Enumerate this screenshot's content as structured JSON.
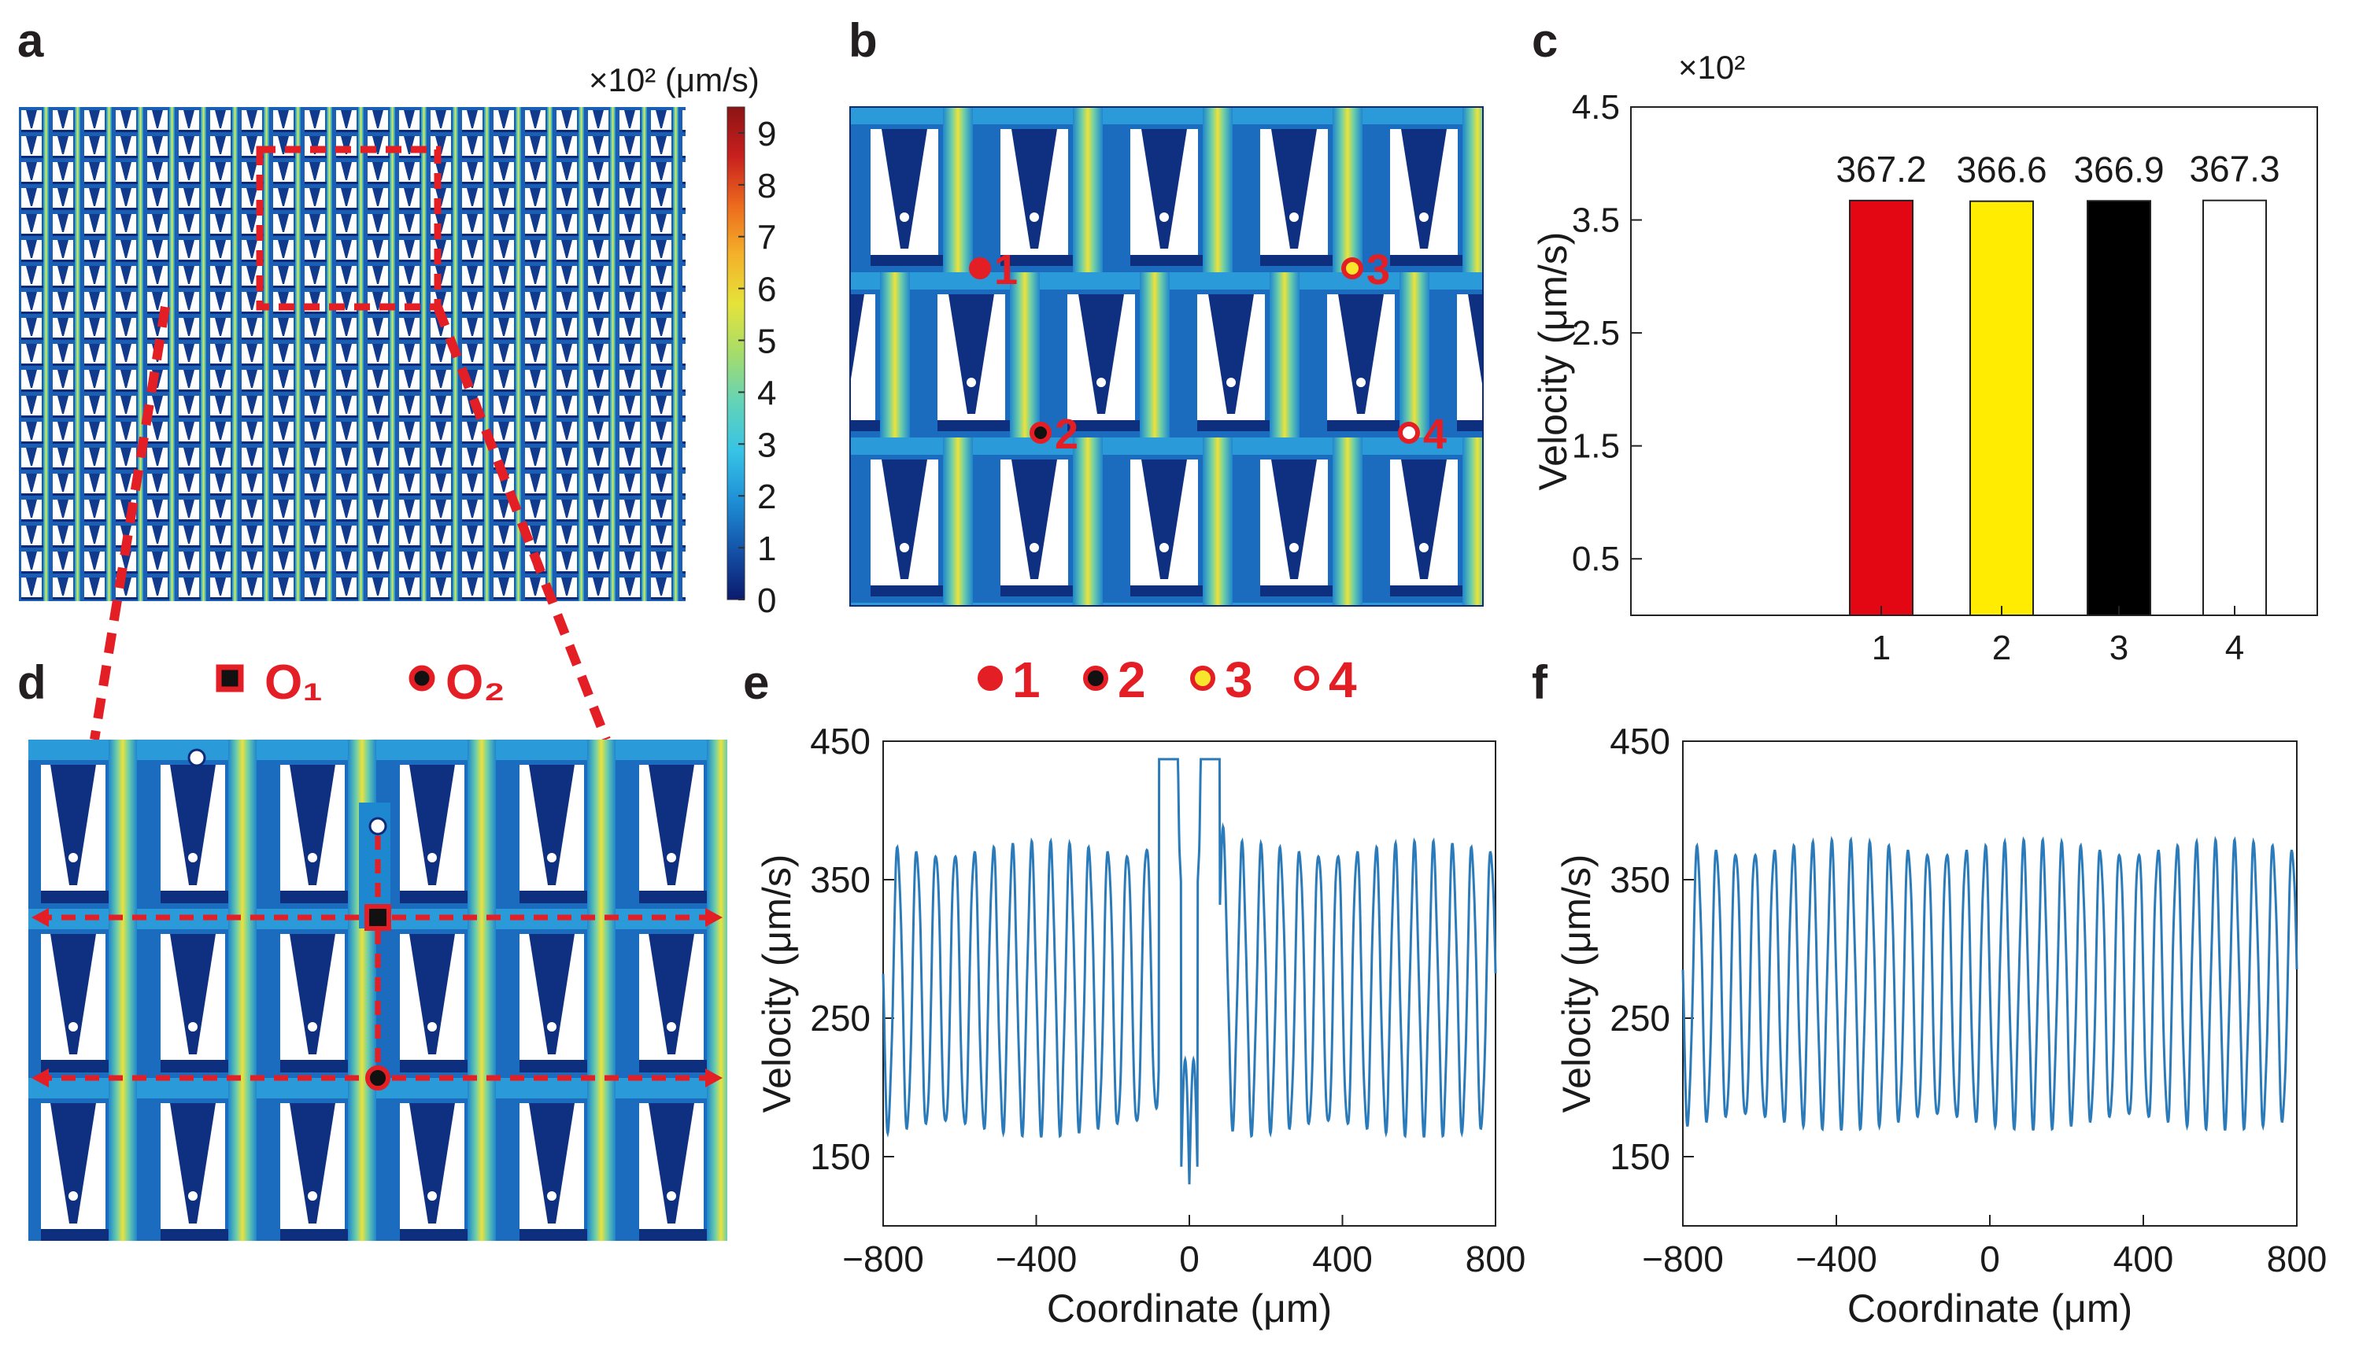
{
  "panels": {
    "a": "a",
    "b": "b",
    "c": "c",
    "d": "d",
    "e": "e",
    "f": "f"
  },
  "colorbar": {
    "unit": "×10² (μm/s)",
    "ticks": [
      "0",
      "1",
      "2",
      "3",
      "4",
      "5",
      "6",
      "7",
      "8",
      "9"
    ],
    "colors": [
      "#0b1a6e",
      "#1452a8",
      "#1e8fd6",
      "#36c3e6",
      "#63d3b8",
      "#a6dc6a",
      "#e5e33a",
      "#f4b12a",
      "#ec6a1d",
      "#c8201e",
      "#8c1414"
    ]
  },
  "field_colors": {
    "low": "#0c2a7a",
    "mid": "#1d87d0",
    "high_band": "#e7df3c",
    "band_edge": "#5fc9c9",
    "hole": "#ffffff",
    "accent": "#e41e25"
  },
  "panel_b_markers": [
    {
      "label": "1",
      "fill": "#e41e25",
      "stroke": "#e41e25"
    },
    {
      "label": "2",
      "fill": "#111111",
      "stroke": "#e41e25"
    },
    {
      "label": "3",
      "fill": "#f7e62b",
      "stroke": "#e41e25"
    },
    {
      "label": "4",
      "fill": "#ffffff",
      "stroke": "#e41e25"
    }
  ],
  "panel_d_legend": {
    "o1": "O₁",
    "o2": "O₂"
  },
  "points_legend": [
    "1",
    "2",
    "3",
    "4"
  ],
  "chart_data": [
    {
      "id": "c",
      "type": "bar",
      "categories": [
        "1",
        "2",
        "3",
        "4"
      ],
      "values": [
        367.2,
        366.6,
        366.9,
        367.3
      ],
      "value_labels": [
        "367.2",
        "366.6",
        "366.9",
        "367.3"
      ],
      "bar_colors": [
        "#e30613",
        "#ffec00",
        "#000000",
        "#ffffff"
      ],
      "multiplier": "×10²",
      "ylabel": "Velocity (μm/s)",
      "yticks": [
        "0.5",
        "1.5",
        "2.5",
        "3.5",
        "4.5"
      ],
      "ylim": [
        0,
        450
      ],
      "ytick_values": [
        50,
        150,
        250,
        350,
        450
      ]
    },
    {
      "id": "e",
      "type": "line",
      "xlabel": "Coordinate (μm)",
      "ylabel": "Velocity (μm/s)",
      "xlim": [
        -800,
        800
      ],
      "ylim": [
        100,
        450
      ],
      "xticks": [
        "−800",
        "−400",
        "0",
        "400",
        "800"
      ],
      "xtick_values": [
        -800,
        -400,
        0,
        400,
        800
      ],
      "yticks": [
        "150",
        "250",
        "350",
        "450"
      ],
      "ytick_values": [
        150,
        250,
        350,
        450
      ],
      "series": [
        {
          "name": "velocity",
          "color": "#2b7bba",
          "period": 50,
          "min": 170,
          "max": 372,
          "center_peaks": [
            {
              "x": -50,
              "y": 432
            },
            {
              "x": 50,
              "y": 437
            }
          ],
          "center_dip": {
            "x": 0,
            "y": 130
          }
        }
      ]
    },
    {
      "id": "f",
      "type": "line",
      "xlabel": "Coordinate (μm)",
      "ylabel": "Velocity (μm/s)",
      "xlim": [
        -800,
        800
      ],
      "ylim": [
        100,
        450
      ],
      "xticks": [
        "−800",
        "−400",
        "0",
        "400",
        "800"
      ],
      "xtick_values": [
        -800,
        -400,
        0,
        400,
        800
      ],
      "yticks": [
        "150",
        "250",
        "350",
        "450"
      ],
      "ytick_values": [
        150,
        250,
        350,
        450
      ],
      "series": [
        {
          "name": "velocity",
          "color": "#2b7bba",
          "period": 50,
          "min": 175,
          "max": 373
        }
      ]
    }
  ]
}
